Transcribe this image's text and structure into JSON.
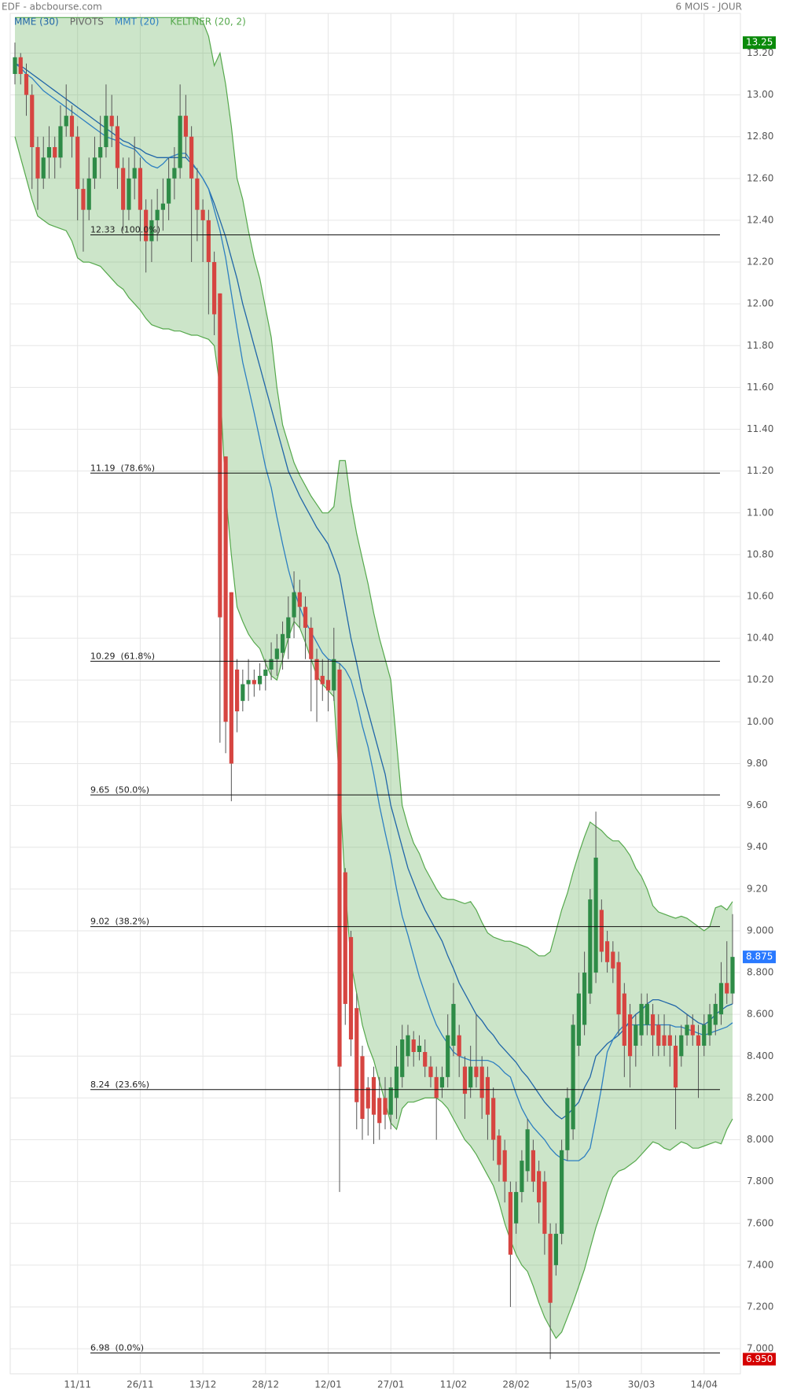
{
  "chart_data": {
    "type": "candlestick",
    "title": "EDF - abcbourse.com",
    "period": "6 MOIS - JOUR",
    "up_color": "#2e8b47",
    "down_color": "#d64541",
    "grid": true,
    "categories": [
      null,
      null,
      null,
      null,
      null,
      null,
      null,
      null,
      null,
      null,
      null,
      "11/11",
      null,
      null,
      null,
      null,
      null,
      null,
      null,
      null,
      null,
      null,
      "26/11",
      null,
      null,
      null,
      null,
      null,
      null,
      null,
      null,
      null,
      null,
      "13/12",
      null,
      null,
      null,
      null,
      null,
      null,
      null,
      null,
      null,
      null,
      "28/12",
      null,
      null,
      null,
      null,
      null,
      null,
      null,
      null,
      null,
      null,
      "12/01",
      null,
      null,
      null,
      null,
      null,
      null,
      null,
      null,
      null,
      null,
      "27/01",
      null,
      null,
      null,
      null,
      null,
      null,
      null,
      null,
      null,
      null,
      "11/02",
      null,
      null,
      null,
      null,
      null,
      null,
      null,
      null,
      null,
      null,
      "28/02",
      null,
      null,
      null,
      null,
      null,
      null,
      null,
      null,
      null,
      null,
      "15/03",
      null,
      null,
      null,
      null,
      null,
      null,
      null,
      null,
      null,
      null,
      "30/03",
      null,
      null,
      null,
      null,
      null,
      null,
      null,
      null,
      null,
      null,
      "14/04",
      null,
      null,
      null,
      null,
      null
    ],
    "open": [
      13.1,
      13.18,
      13.1,
      13.0,
      12.75,
      12.6,
      12.7,
      12.75,
      12.7,
      12.85,
      12.9,
      12.8,
      12.55,
      12.45,
      12.6,
      12.7,
      12.75,
      12.9,
      12.85,
      12.65,
      12.45,
      12.6,
      12.65,
      12.45,
      12.3,
      12.4,
      12.45,
      12.48,
      12.6,
      12.65,
      12.9,
      12.8,
      12.6,
      12.45,
      12.4,
      12.2,
      12.05,
      11.27,
      10.62,
      10.25,
      10.1,
      10.18,
      10.2,
      10.18,
      10.22,
      10.25,
      10.3,
      10.33,
      10.4,
      10.5,
      10.62,
      10.55,
      10.45,
      10.3,
      10.22,
      10.2,
      10.15,
      10.25,
      9.28,
      8.97,
      8.63,
      8.4,
      8.25,
      8.3,
      8.2,
      8.2,
      8.12,
      8.2,
      8.3,
      8.4,
      8.48,
      8.42,
      8.42,
      8.35,
      8.3,
      8.25,
      8.3,
      8.45,
      8.5,
      8.35,
      8.25,
      8.35,
      8.35,
      8.3,
      8.2,
      8.02,
      7.95,
      7.75,
      7.6,
      7.75,
      7.85,
      7.95,
      7.85,
      7.8,
      7.55,
      7.4,
      7.55,
      7.95,
      8.05,
      8.45,
      8.55,
      8.7,
      8.8,
      9.1,
      8.95,
      8.9,
      8.85,
      8.7,
      8.6,
      8.45,
      8.5,
      8.55,
      8.6,
      8.55,
      8.5,
      8.5,
      8.45,
      8.4,
      8.5,
      8.55,
      8.5,
      8.45,
      8.5,
      8.55,
      8.6,
      8.75,
      8.7
    ],
    "high": [
      13.25,
      13.2,
      13.15,
      13.05,
      12.8,
      12.8,
      12.85,
      12.8,
      12.95,
      13.05,
      12.95,
      12.85,
      12.6,
      12.7,
      12.8,
      12.9,
      13.05,
      13.0,
      12.9,
      12.7,
      12.7,
      12.8,
      12.7,
      12.5,
      12.5,
      12.55,
      12.6,
      12.7,
      12.75,
      13.05,
      13.0,
      12.85,
      12.65,
      12.5,
      12.45,
      12.25,
      12.05,
      11.27,
      10.62,
      10.3,
      10.25,
      10.3,
      10.25,
      10.28,
      10.3,
      10.38,
      10.42,
      10.48,
      10.6,
      10.72,
      10.68,
      10.6,
      10.5,
      10.35,
      10.3,
      10.3,
      10.45,
      10.28,
      9.3,
      9.0,
      8.7,
      8.45,
      8.3,
      8.35,
      8.3,
      8.3,
      8.3,
      8.45,
      8.55,
      8.55,
      8.52,
      8.5,
      8.48,
      8.4,
      8.35,
      8.35,
      8.6,
      8.75,
      8.55,
      8.4,
      8.45,
      8.6,
      8.4,
      8.35,
      8.25,
      8.05,
      8.0,
      7.8,
      7.8,
      7.95,
      8.1,
      8.0,
      7.9,
      7.85,
      7.6,
      7.6,
      8.0,
      8.25,
      8.6,
      8.8,
      8.9,
      9.2,
      9.57,
      9.15,
      9.0,
      8.95,
      8.9,
      8.75,
      8.65,
      8.6,
      8.7,
      8.7,
      8.65,
      8.6,
      8.6,
      8.55,
      8.5,
      8.55,
      8.6,
      8.6,
      8.55,
      8.6,
      8.65,
      8.7,
      8.85,
      8.95,
      9.08
    ],
    "low": [
      13.05,
      13.05,
      12.9,
      12.55,
      12.45,
      12.55,
      12.6,
      12.6,
      12.65,
      12.8,
      12.7,
      12.4,
      12.25,
      12.4,
      12.55,
      12.6,
      12.7,
      12.75,
      12.55,
      12.35,
      12.4,
      12.5,
      12.3,
      12.15,
      12.2,
      12.3,
      12.35,
      12.4,
      12.5,
      12.6,
      12.7,
      12.2,
      12.3,
      12.2,
      11.95,
      11.85,
      9.9,
      9.85,
      9.62,
      9.95,
      10.05,
      10.1,
      10.12,
      10.15,
      10.15,
      10.2,
      10.22,
      10.25,
      10.3,
      10.4,
      10.45,
      10.3,
      10.05,
      10.0,
      10.1,
      10.05,
      10.1,
      7.75,
      8.55,
      8.4,
      8.05,
      8.0,
      8.02,
      7.98,
      8.0,
      8.05,
      8.05,
      8.1,
      8.25,
      8.35,
      8.35,
      8.38,
      8.3,
      8.25,
      8.0,
      8.2,
      8.25,
      8.4,
      8.3,
      8.1,
      8.2,
      8.25,
      8.1,
      8.0,
      7.9,
      7.8,
      7.7,
      7.2,
      7.55,
      7.7,
      7.8,
      7.75,
      7.6,
      7.45,
      6.95,
      7.35,
      7.5,
      7.9,
      8.0,
      8.4,
      8.5,
      8.65,
      8.75,
      8.85,
      8.8,
      8.75,
      8.5,
      8.3,
      8.25,
      8.35,
      8.45,
      8.5,
      8.4,
      8.4,
      8.4,
      8.35,
      8.05,
      8.35,
      8.45,
      8.45,
      8.2,
      8.4,
      8.45,
      8.5,
      8.55,
      8.65,
      8.65
    ],
    "close": [
      13.18,
      13.1,
      13.0,
      12.75,
      12.6,
      12.7,
      12.75,
      12.7,
      12.85,
      12.9,
      12.8,
      12.55,
      12.45,
      12.6,
      12.7,
      12.75,
      12.9,
      12.85,
      12.65,
      12.45,
      12.6,
      12.65,
      12.45,
      12.3,
      12.4,
      12.45,
      12.48,
      12.6,
      12.65,
      12.9,
      12.8,
      12.6,
      12.45,
      12.4,
      12.2,
      11.95,
      10.5,
      10.0,
      9.8,
      10.05,
      10.18,
      10.2,
      10.18,
      10.22,
      10.25,
      10.3,
      10.35,
      10.42,
      10.5,
      10.62,
      10.55,
      10.45,
      10.3,
      10.2,
      10.18,
      10.15,
      10.3,
      8.35,
      8.65,
      8.48,
      8.18,
      8.1,
      8.15,
      8.12,
      8.08,
      8.12,
      8.25,
      8.35,
      8.48,
      8.5,
      8.42,
      8.45,
      8.35,
      8.3,
      8.2,
      8.3,
      8.5,
      8.65,
      8.4,
      8.22,
      8.35,
      8.3,
      8.2,
      8.12,
      8.0,
      7.88,
      7.8,
      7.45,
      7.75,
      7.9,
      8.05,
      7.8,
      7.7,
      7.55,
      7.22,
      7.55,
      7.95,
      8.2,
      8.55,
      8.7,
      8.8,
      9.15,
      9.35,
      8.9,
      8.85,
      8.82,
      8.6,
      8.45,
      8.4,
      8.55,
      8.65,
      8.65,
      8.5,
      8.45,
      8.45,
      8.45,
      8.25,
      8.5,
      8.55,
      8.5,
      8.45,
      8.55,
      8.6,
      8.65,
      8.75,
      8.7,
      8.875
    ],
    "series": [
      {
        "name": "MME (30)",
        "color": "#2166a8",
        "values": [
          13.15,
          13.14,
          13.12,
          13.1,
          13.08,
          13.06,
          13.04,
          13.02,
          13.0,
          12.98,
          12.96,
          12.94,
          12.92,
          12.9,
          12.88,
          12.86,
          12.84,
          12.82,
          12.8,
          12.78,
          12.77,
          12.75,
          12.74,
          12.72,
          12.71,
          12.7,
          12.7,
          12.7,
          12.7,
          12.7,
          12.7,
          12.67,
          12.64,
          12.6,
          12.55,
          12.48,
          12.4,
          12.32,
          12.22,
          12.12,
          12.0,
          11.9,
          11.8,
          11.7,
          11.6,
          11.5,
          11.4,
          11.3,
          11.2,
          11.14,
          11.08,
          11.03,
          10.98,
          10.93,
          10.89,
          10.85,
          10.78,
          10.7,
          10.55,
          10.4,
          10.28,
          10.15,
          10.05,
          9.95,
          9.85,
          9.75,
          9.6,
          9.5,
          9.4,
          9.3,
          9.23,
          9.16,
          9.1,
          9.05,
          9.0,
          8.95,
          8.88,
          8.82,
          8.75,
          8.7,
          8.65,
          8.6,
          8.57,
          8.53,
          8.5,
          8.46,
          8.43,
          8.4,
          8.37,
          8.33,
          8.3,
          8.26,
          8.22,
          8.18,
          8.15,
          8.12,
          8.1,
          8.12,
          8.15,
          8.18,
          8.25,
          8.3,
          8.4,
          8.43,
          8.46,
          8.48,
          8.5,
          8.53,
          8.57,
          8.6,
          8.62,
          8.65,
          8.67,
          8.67,
          8.66,
          8.65,
          8.64,
          8.62,
          8.6,
          8.58,
          8.56,
          8.55,
          8.57,
          8.6,
          8.62,
          8.64,
          8.65
        ]
      },
      {
        "name": "MMT (20)",
        "color": "#2d7fc1",
        "values": [
          13.15,
          13.13,
          13.1,
          13.08,
          13.05,
          13.02,
          13.0,
          12.98,
          12.96,
          12.94,
          12.92,
          12.9,
          12.88,
          12.86,
          12.84,
          12.82,
          12.8,
          12.79,
          12.78,
          12.76,
          12.75,
          12.74,
          12.71,
          12.68,
          12.66,
          12.65,
          12.67,
          12.7,
          12.71,
          12.72,
          12.72,
          12.68,
          12.64,
          12.6,
          12.55,
          12.45,
          12.35,
          12.22,
          12.05,
          11.88,
          11.72,
          11.6,
          11.48,
          11.35,
          11.22,
          11.12,
          10.98,
          10.85,
          10.73,
          10.63,
          10.55,
          10.48,
          10.43,
          10.38,
          10.33,
          10.3,
          10.29,
          10.28,
          10.25,
          10.2,
          10.1,
          9.98,
          9.88,
          9.75,
          9.6,
          9.47,
          9.35,
          9.2,
          9.07,
          8.98,
          8.88,
          8.78,
          8.7,
          8.62,
          8.55,
          8.5,
          8.46,
          8.42,
          8.4,
          8.39,
          8.38,
          8.38,
          8.38,
          8.38,
          8.37,
          8.35,
          8.32,
          8.3,
          8.22,
          8.15,
          8.1,
          8.06,
          8.03,
          8.0,
          7.96,
          7.93,
          7.91,
          7.9,
          7.9,
          7.9,
          7.92,
          7.96,
          8.1,
          8.25,
          8.42,
          8.48,
          8.52,
          8.55,
          8.55,
          8.55,
          8.55,
          8.55,
          8.55,
          8.55,
          8.55,
          8.55,
          8.54,
          8.54,
          8.53,
          8.52,
          8.51,
          8.5,
          8.51,
          8.52,
          8.53,
          8.54,
          8.56
        ]
      }
    ],
    "pivots": {
      "name": "PIVOTS",
      "color": "#666666"
    },
    "keltner": {
      "name": "KELTNER (20, 2)",
      "color": "#55a84c",
      "upper": [
        13.37,
        13.37,
        13.37,
        13.37,
        13.37,
        13.37,
        13.37,
        13.37,
        13.37,
        13.37,
        13.37,
        13.37,
        13.37,
        13.37,
        13.37,
        13.37,
        13.37,
        13.37,
        13.37,
        13.37,
        13.37,
        13.37,
        13.37,
        13.37,
        13.37,
        13.37,
        13.37,
        13.37,
        13.37,
        13.37,
        13.37,
        13.37,
        13.37,
        13.35,
        13.28,
        13.14,
        13.2,
        13.05,
        12.85,
        12.6,
        12.5,
        12.35,
        12.22,
        12.12,
        11.98,
        11.84,
        11.6,
        11.42,
        11.33,
        11.24,
        11.18,
        11.13,
        11.08,
        11.04,
        11.0,
        11.0,
        11.03,
        11.25,
        11.25,
        11.05,
        10.9,
        10.78,
        10.66,
        10.52,
        10.4,
        10.3,
        10.2,
        9.9,
        9.6,
        9.5,
        9.42,
        9.37,
        9.3,
        9.25,
        9.2,
        9.16,
        9.15,
        9.15,
        9.14,
        9.13,
        9.14,
        9.1,
        9.04,
        8.99,
        8.97,
        8.96,
        8.95,
        8.95,
        8.94,
        8.93,
        8.92,
        8.9,
        8.88,
        8.88,
        8.9,
        9.0,
        9.1,
        9.18,
        9.28,
        9.37,
        9.45,
        9.52,
        9.5,
        9.48,
        9.45,
        9.43,
        9.43,
        9.4,
        9.36,
        9.3,
        9.26,
        9.2,
        9.12,
        9.09,
        9.08,
        9.07,
        9.06,
        9.07,
        9.06,
        9.04,
        9.02,
        9.0,
        9.02,
        9.11,
        9.12,
        9.1,
        9.14
      ],
      "lower": [
        12.8,
        12.7,
        12.6,
        12.5,
        12.42,
        12.4,
        12.38,
        12.37,
        12.36,
        12.35,
        12.3,
        12.22,
        12.2,
        12.2,
        12.19,
        12.18,
        12.15,
        12.12,
        12.09,
        12.07,
        12.03,
        12.0,
        11.97,
        11.93,
        11.9,
        11.89,
        11.88,
        11.88,
        11.87,
        11.87,
        11.86,
        11.85,
        11.85,
        11.84,
        11.83,
        11.8,
        11.6,
        11.1,
        10.8,
        10.55,
        10.48,
        10.42,
        10.38,
        10.35,
        10.28,
        10.22,
        10.2,
        10.3,
        10.4,
        10.48,
        10.45,
        10.38,
        10.3,
        10.22,
        10.18,
        10.15,
        10.12,
        9.7,
        9.2,
        8.85,
        8.7,
        8.55,
        8.45,
        8.38,
        8.28,
        8.18,
        8.08,
        8.05,
        8.15,
        8.18,
        8.18,
        8.19,
        8.2,
        8.2,
        8.2,
        8.18,
        8.15,
        8.1,
        8.05,
        8.0,
        7.97,
        7.93,
        7.88,
        7.83,
        7.78,
        7.7,
        7.6,
        7.52,
        7.45,
        7.4,
        7.37,
        7.3,
        7.22,
        7.15,
        7.1,
        7.05,
        7.08,
        7.15,
        7.22,
        7.3,
        7.38,
        7.48,
        7.58,
        7.66,
        7.75,
        7.82,
        7.85,
        7.86,
        7.88,
        7.9,
        7.93,
        7.96,
        7.99,
        7.98,
        7.96,
        7.95,
        7.97,
        7.99,
        7.98,
        7.96,
        7.96,
        7.97,
        7.98,
        7.99,
        7.98,
        8.05,
        8.1
      ]
    },
    "levels": [
      {
        "value": 12.33,
        "label": "12.33  (100.0%)"
      },
      {
        "value": 11.19,
        "label": "11.19  (78.6%)"
      },
      {
        "value": 10.29,
        "label": "10.29  (61.8%)"
      },
      {
        "value": 9.65,
        "label": "9.65  (50.0%)"
      },
      {
        "value": 9.02,
        "label": "9.02  (38.2%)"
      },
      {
        "value": 8.24,
        "label": "8.24  (23.6%)"
      },
      {
        "value": 6.98,
        "label": "6.98  (0.0%)"
      }
    ],
    "price_tags": [
      {
        "value": 13.25,
        "label": "13.25",
        "color": "#0a8a0a"
      },
      {
        "value": 8.875,
        "label": "8.875",
        "color": "#2979ff"
      },
      {
        "value": 6.95,
        "label": "6.950",
        "color": "#d50000"
      }
    ],
    "ylim": [
      6.88,
      13.39
    ],
    "yticks": [
      {
        "value": 7.0,
        "label": "7.000"
      },
      {
        "value": 7.2,
        "label": "7.200"
      },
      {
        "value": 7.4,
        "label": "7.400"
      },
      {
        "value": 7.6,
        "label": "7.600"
      },
      {
        "value": 7.8,
        "label": "7.800"
      },
      {
        "value": 8.0,
        "label": "8.000"
      },
      {
        "value": 8.2,
        "label": "8.200"
      },
      {
        "value": 8.4,
        "label": "8.400"
      },
      {
        "value": 8.6,
        "label": "8.600"
      },
      {
        "value": 8.8,
        "label": "8.800"
      },
      {
        "value": 9.0,
        "label": "9.000"
      },
      {
        "value": 9.2,
        "label": "9.20"
      },
      {
        "value": 9.4,
        "label": "9.40"
      },
      {
        "value": 9.6,
        "label": "9.60"
      },
      {
        "value": 9.8,
        "label": "9.80"
      },
      {
        "value": 10.0,
        "label": "10.00"
      },
      {
        "value": 10.2,
        "label": "10.20"
      },
      {
        "value": 10.4,
        "label": "10.40"
      },
      {
        "value": 10.6,
        "label": "10.60"
      },
      {
        "value": 10.8,
        "label": "10.80"
      },
      {
        "value": 11.0,
        "label": "11.00"
      },
      {
        "value": 11.2,
        "label": "11.20"
      },
      {
        "value": 11.4,
        "label": "11.40"
      },
      {
        "value": 11.6,
        "label": "11.60"
      },
      {
        "value": 11.8,
        "label": "11.80"
      },
      {
        "value": 12.0,
        "label": "12.00"
      },
      {
        "value": 12.2,
        "label": "12.20"
      },
      {
        "value": 12.4,
        "label": "12.40"
      },
      {
        "value": 12.6,
        "label": "12.60"
      },
      {
        "value": 12.8,
        "label": "12.80"
      },
      {
        "value": 13.0,
        "label": "13.00"
      },
      {
        "value": 13.2,
        "label": "13.20"
      }
    ]
  }
}
